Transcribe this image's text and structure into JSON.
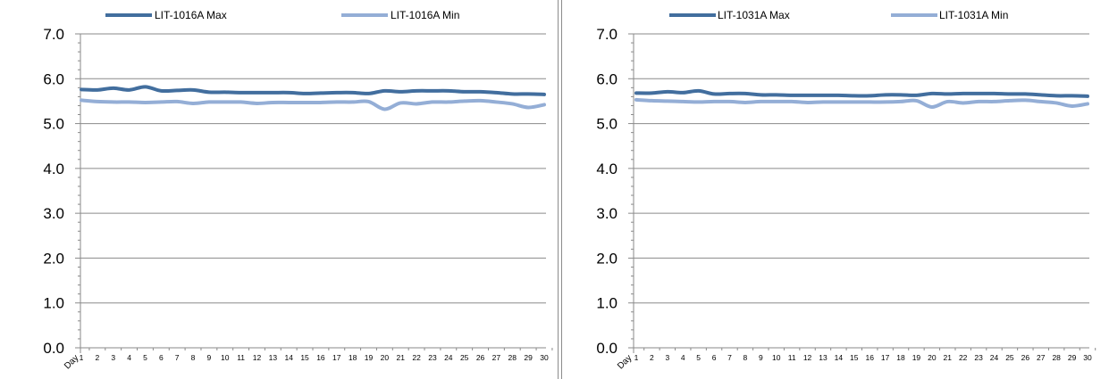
{
  "chart_data": [
    {
      "type": "line",
      "xlabel": "Day",
      "ylim": [
        0,
        7
      ],
      "yticks": [
        "0.0",
        "1.0",
        "2.0",
        "3.0",
        "4.0",
        "5.0",
        "6.0",
        "7.0"
      ],
      "grid": true,
      "legend_position": "top",
      "x": [
        1,
        2,
        3,
        4,
        5,
        6,
        7,
        8,
        9,
        10,
        11,
        12,
        13,
        14,
        15,
        16,
        17,
        18,
        19,
        20,
        21,
        22,
        23,
        24,
        25,
        26,
        27,
        28,
        29,
        30
      ],
      "series": [
        {
          "name": "LIT-1016A Max",
          "color": "#426e9e",
          "values": [
            5.76,
            5.75,
            5.79,
            5.75,
            5.82,
            5.73,
            5.74,
            5.75,
            5.7,
            5.7,
            5.69,
            5.69,
            5.69,
            5.69,
            5.67,
            5.68,
            5.69,
            5.69,
            5.67,
            5.73,
            5.71,
            5.73,
            5.73,
            5.73,
            5.71,
            5.71,
            5.69,
            5.66,
            5.66,
            5.65
          ]
        },
        {
          "name": "LIT-1016A Min",
          "color": "#94aed6",
          "values": [
            5.52,
            5.49,
            5.48,
            5.48,
            5.47,
            5.48,
            5.49,
            5.45,
            5.48,
            5.48,
            5.48,
            5.45,
            5.47,
            5.47,
            5.47,
            5.47,
            5.48,
            5.48,
            5.49,
            5.32,
            5.46,
            5.44,
            5.48,
            5.48,
            5.5,
            5.51,
            5.48,
            5.44,
            5.36,
            5.42
          ]
        }
      ]
    },
    {
      "type": "line",
      "xlabel": "Day",
      "ylim": [
        0,
        7
      ],
      "yticks": [
        "0.0",
        "1.0",
        "2.0",
        "3.0",
        "4.0",
        "5.0",
        "6.0",
        "7.0"
      ],
      "grid": true,
      "legend_position": "top",
      "x": [
        1,
        2,
        3,
        4,
        5,
        6,
        7,
        8,
        9,
        10,
        11,
        12,
        13,
        14,
        15,
        16,
        17,
        18,
        19,
        20,
        21,
        22,
        23,
        24,
        25,
        26,
        27,
        28,
        29,
        30
      ],
      "series": [
        {
          "name": "LIT-1031A Max",
          "color": "#426e9e",
          "values": [
            5.68,
            5.68,
            5.71,
            5.69,
            5.73,
            5.66,
            5.67,
            5.67,
            5.64,
            5.64,
            5.63,
            5.63,
            5.63,
            5.63,
            5.62,
            5.62,
            5.64,
            5.64,
            5.63,
            5.67,
            5.66,
            5.67,
            5.67,
            5.67,
            5.66,
            5.66,
            5.64,
            5.62,
            5.62,
            5.61
          ]
        },
        {
          "name": "LIT-1031A Min",
          "color": "#94aed6",
          "values": [
            5.53,
            5.51,
            5.5,
            5.49,
            5.48,
            5.49,
            5.49,
            5.47,
            5.49,
            5.49,
            5.49,
            5.47,
            5.48,
            5.48,
            5.48,
            5.48,
            5.48,
            5.49,
            5.51,
            5.37,
            5.49,
            5.46,
            5.49,
            5.49,
            5.51,
            5.52,
            5.49,
            5.46,
            5.39,
            5.44
          ]
        }
      ]
    }
  ]
}
